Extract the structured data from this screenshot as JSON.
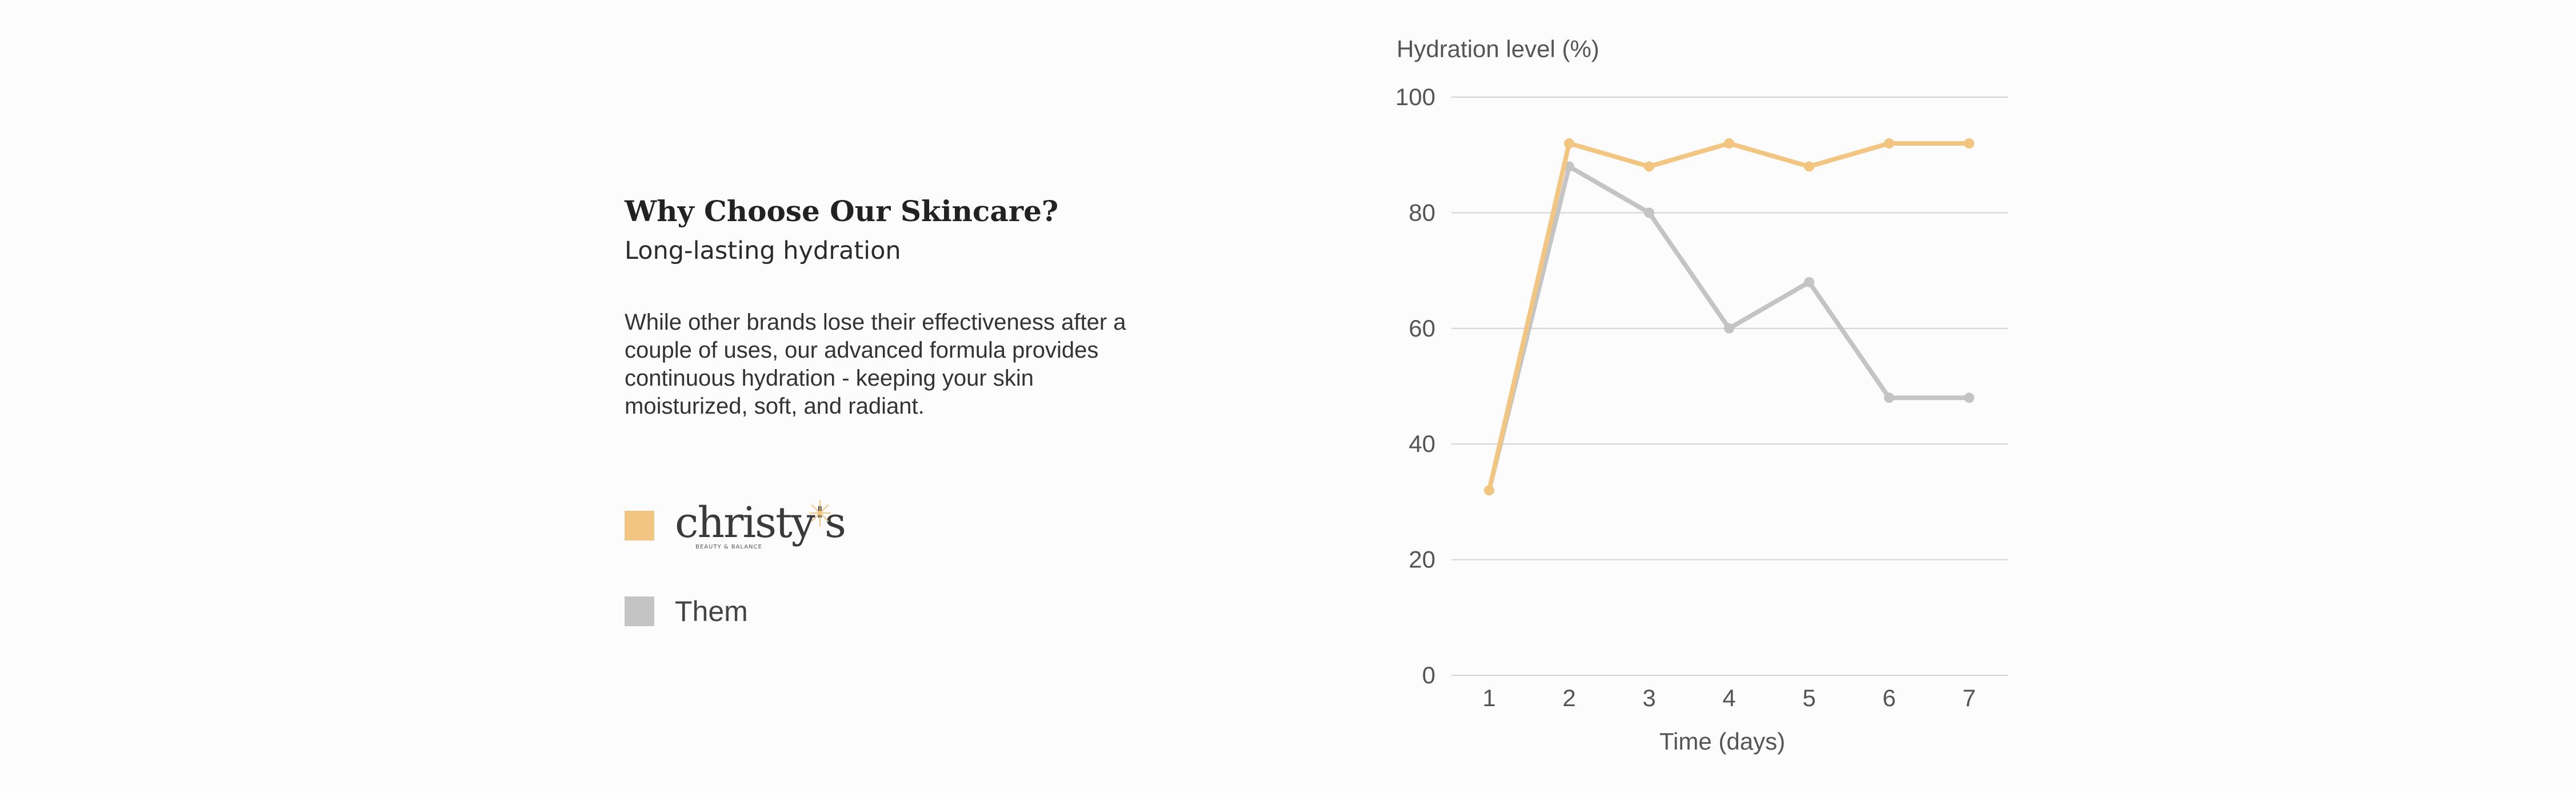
{
  "copy": {
    "headline": "Why Choose Our Skincare?",
    "subhead": "Long-lasting hydration",
    "body": "While other brands lose their effectiveness after a couple of uses, our advanced formula provides continuous hydration - keeping your skin moisturized, soft, and radiant."
  },
  "legend": {
    "brand": {
      "wordmark": "christy's",
      "tagline": "BEAUTY & BALANCE",
      "color": "#f2c580"
    },
    "them": {
      "label": "Them",
      "color": "#c4c4c4"
    }
  },
  "chart_data": {
    "type": "line",
    "ylabel": "Hydration level (%)",
    "xlabel": "Time (days)",
    "x": [
      1,
      2,
      3,
      4,
      5,
      6,
      7
    ],
    "ylim": [
      0,
      100
    ],
    "yticks": [
      0,
      20,
      40,
      60,
      80,
      100
    ],
    "grid": true,
    "series": [
      {
        "key": "them",
        "color": "#c4c4c4",
        "values": [
          32,
          88,
          80,
          60,
          68,
          48,
          48
        ]
      },
      {
        "key": "brand",
        "color": "#f2c580",
        "values": [
          32,
          92,
          88,
          92,
          88,
          92,
          92
        ]
      }
    ]
  }
}
